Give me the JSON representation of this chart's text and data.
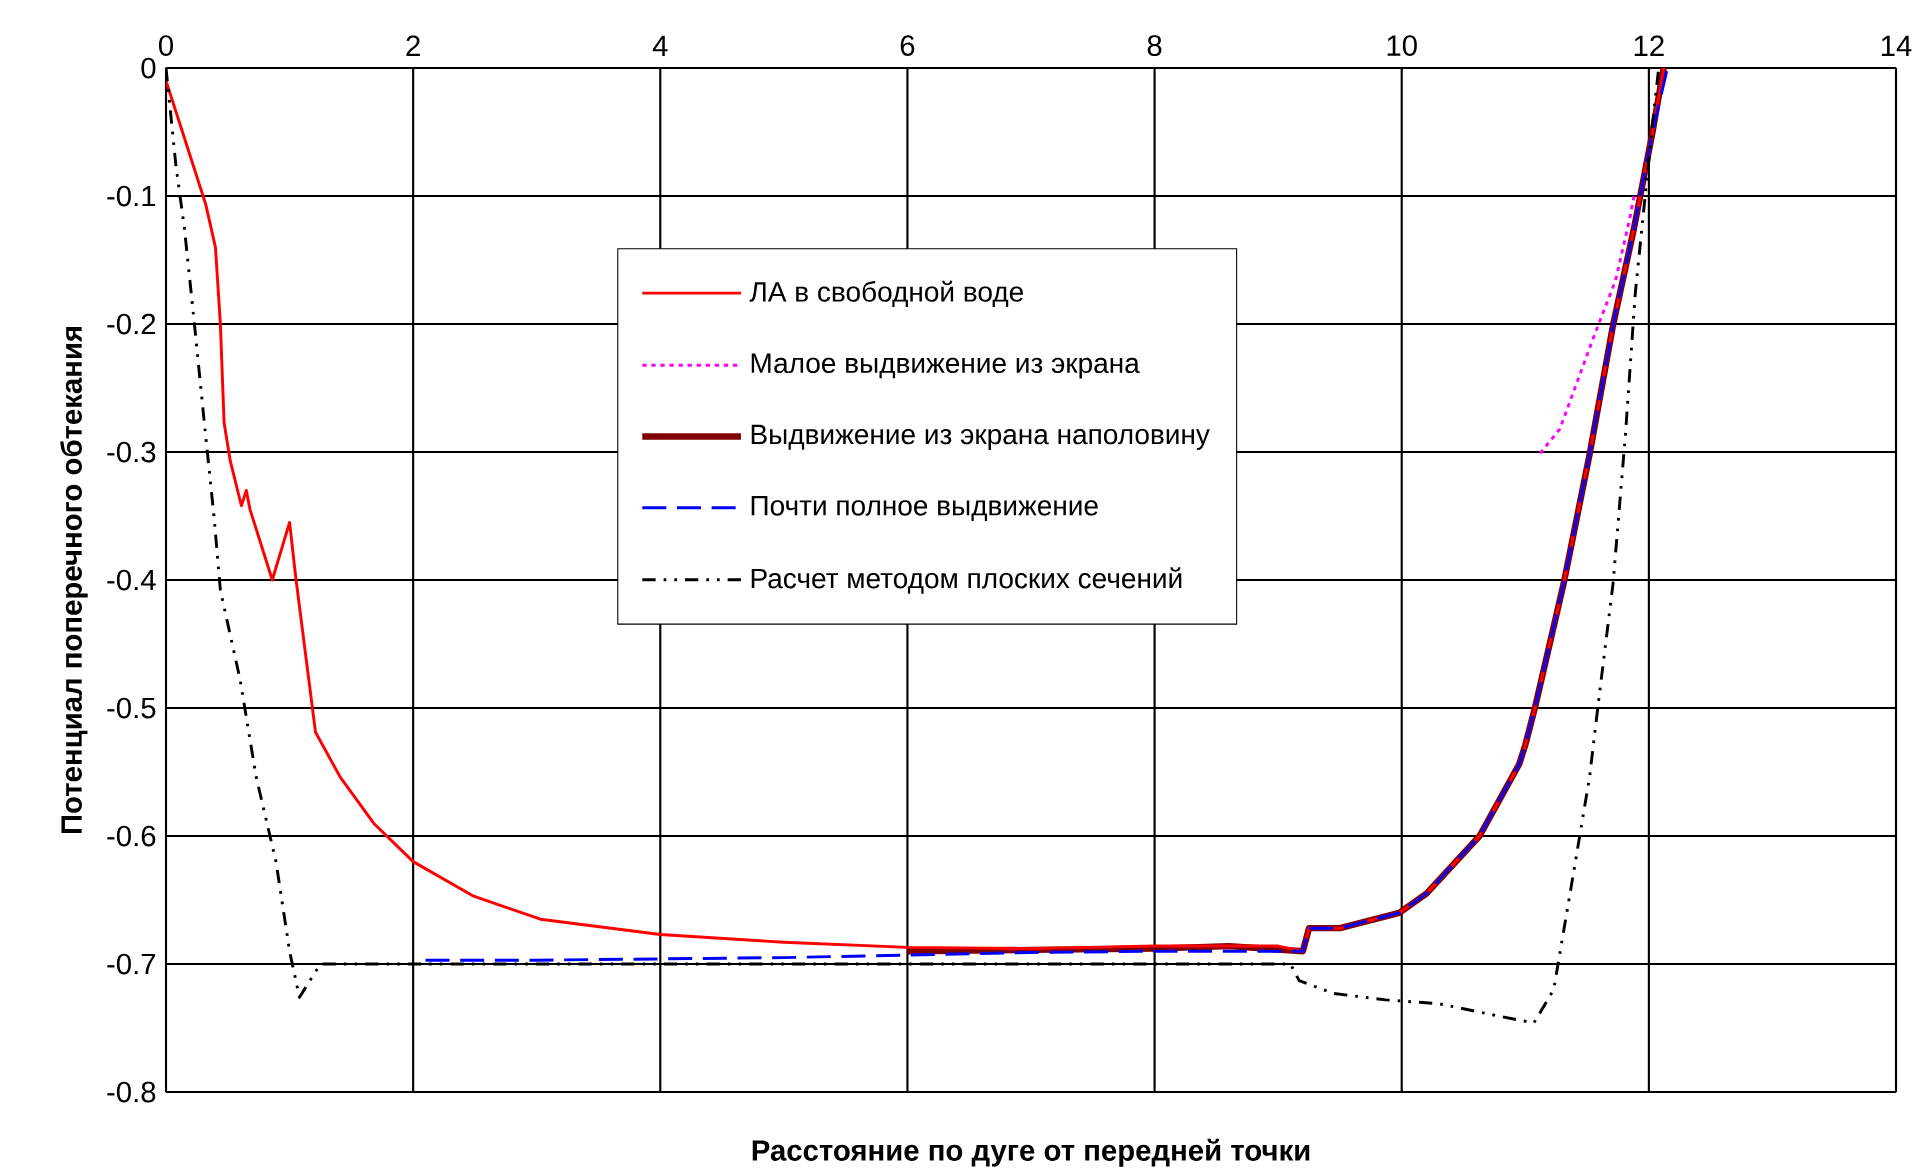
{
  "chart_data": {
    "type": "line",
    "xlabel": "Расстояние по дуге от передней точки",
    "ylabel": "Потенциал поперечного обтекания",
    "xlim": [
      0,
      14
    ],
    "ylim": [
      -0.8,
      0
    ],
    "xticks": [
      0,
      2,
      4,
      6,
      8,
      10,
      12,
      14
    ],
    "yticks": [
      0,
      -0.1,
      -0.2,
      -0.3,
      -0.4,
      -0.5,
      -0.6,
      -0.7,
      -0.8
    ],
    "grid": true,
    "legend": "top",
    "series": [
      {
        "name": "ЛА в свободной воде",
        "color": "#ff0000",
        "line_style": "solid",
        "x": [
          0.0,
          0.32,
          0.4,
          0.44,
          0.47,
          0.52,
          0.61,
          0.65,
          0.68,
          0.86,
          1.0,
          1.05,
          1.21,
          1.41,
          1.68,
          2.0,
          2.49,
          3.03,
          4.0,
          5.0,
          6.0,
          7.0,
          8.0,
          9.0,
          9.2,
          9.25,
          9.5,
          9.98,
          10.2,
          10.63,
          10.95,
          11.0,
          11.08,
          11.31,
          11.52,
          11.71,
          11.88,
          11.93,
          12.03,
          12.12
        ],
        "values": [
          -0.01,
          -0.106,
          -0.14,
          -0.2,
          -0.277,
          -0.307,
          -0.342,
          -0.33,
          -0.345,
          -0.4,
          -0.355,
          -0.398,
          -0.519,
          -0.554,
          -0.59,
          -0.62,
          -0.647,
          -0.665,
          -0.677,
          -0.683,
          -0.687,
          -0.688,
          -0.686,
          -0.686,
          -0.69,
          -0.672,
          -0.672,
          -0.66,
          -0.645,
          -0.6,
          -0.544,
          -0.529,
          -0.499,
          -0.403,
          -0.302,
          -0.201,
          -0.125,
          -0.1,
          -0.05,
          0.0
        ]
      },
      {
        "name": "Малое выдвижение из экрана",
        "color": "#ff00ff",
        "line_style": "dotted",
        "x": [
          11.12,
          11.28,
          11.55,
          11.73,
          11.84,
          11.88
        ],
        "values": [
          -0.301,
          -0.282,
          -0.211,
          -0.166,
          -0.12,
          -0.1
        ]
      },
      {
        "name": "Выдвижение из экрана наполовину",
        "color": "#800000",
        "line_style": "solid",
        "x": [
          6.0,
          7.0,
          8.0,
          8.6,
          9.2,
          9.25,
          9.5,
          9.98,
          10.2,
          10.63,
          10.95,
          11.0,
          11.08,
          11.31,
          11.52,
          11.71,
          11.88,
          12.03,
          12.12
        ],
        "values": [
          -0.69,
          -0.689,
          -0.688,
          -0.686,
          -0.69,
          -0.672,
          -0.672,
          -0.66,
          -0.645,
          -0.6,
          -0.544,
          -0.529,
          -0.499,
          -0.403,
          -0.302,
          -0.201,
          -0.125,
          -0.05,
          0.0
        ]
      },
      {
        "name": "Почти полное выдвижение",
        "color": "#0000ff",
        "line_style": "dashed",
        "x": [
          2.1,
          3.0,
          4.0,
          5.0,
          6.0,
          7.0,
          8.0,
          9.0,
          9.2,
          9.25,
          9.5,
          9.98,
          10.2,
          10.63,
          10.95,
          11.0,
          11.08,
          11.31,
          11.52,
          11.71,
          11.88,
          12.03,
          12.15
        ],
        "values": [
          -0.697,
          -0.697,
          -0.696,
          -0.695,
          -0.693,
          -0.691,
          -0.69,
          -0.69,
          -0.69,
          -0.672,
          -0.672,
          -0.66,
          -0.645,
          -0.6,
          -0.544,
          -0.529,
          -0.499,
          -0.403,
          -0.302,
          -0.201,
          -0.125,
          -0.05,
          0.0
        ]
      },
      {
        "name": "Расчет методом плоских сечений",
        "color": "#000000",
        "line_style": "dashdot",
        "x": [
          0.0,
          0.08,
          0.15,
          0.23,
          0.31,
          0.39,
          0.44,
          0.6,
          0.73,
          0.89,
          1.0,
          1.08,
          1.25,
          2.0,
          4.0,
          6.0,
          8.0,
          9.1,
          9.17,
          9.45,
          9.87,
          10.3,
          10.8,
          11.07,
          11.23,
          11.39,
          11.52,
          11.6,
          11.71,
          11.81,
          11.89,
          11.97,
          12.05,
          12.08
        ],
        "values": [
          0.0,
          -0.076,
          -0.126,
          -0.2,
          -0.277,
          -0.352,
          -0.408,
          -0.478,
          -0.554,
          -0.62,
          -0.69,
          -0.726,
          -0.7,
          -0.7,
          -0.7,
          -0.7,
          -0.7,
          -0.7,
          -0.713,
          -0.723,
          -0.728,
          -0.731,
          -0.741,
          -0.746,
          -0.72,
          -0.629,
          -0.554,
          -0.489,
          -0.403,
          -0.287,
          -0.176,
          -0.1,
          -0.025,
          0.0
        ]
      }
    ]
  }
}
